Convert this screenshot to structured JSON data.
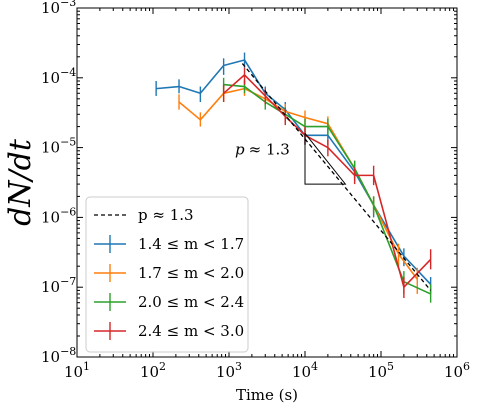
{
  "chart_data": {
    "type": "line",
    "xlabel": "Time (s)",
    "ylabel": "dN/dt",
    "xscale": "log",
    "yscale": "log",
    "xlim": [
      10,
      1000000
    ],
    "ylim": [
      1e-08,
      0.001
    ],
    "x_ticks": [
      {
        "value": 10,
        "base": "10",
        "exp": "1"
      },
      {
        "value": 100,
        "base": "10",
        "exp": "2"
      },
      {
        "value": 1000,
        "base": "10",
        "exp": "3"
      },
      {
        "value": 10000,
        "base": "10",
        "exp": "4"
      },
      {
        "value": 100000,
        "base": "10",
        "exp": "5"
      },
      {
        "value": 1000000,
        "base": "10",
        "exp": "6"
      }
    ],
    "y_ticks": [
      {
        "value": 1e-08,
        "base": "10",
        "exp": "−8"
      },
      {
        "value": 1e-07,
        "base": "10",
        "exp": "−7"
      },
      {
        "value": 1e-06,
        "base": "10",
        "exp": "−6"
      },
      {
        "value": 1e-05,
        "base": "10",
        "exp": "−5"
      },
      {
        "value": 0.0001,
        "base": "10",
        "exp": "−4"
      },
      {
        "value": 0.001,
        "base": "10",
        "exp": "−3"
      }
    ],
    "legend_position": "lower-left",
    "fit_line": {
      "label": "p ≈ 1.3",
      "style": "dashed",
      "color": "#000000",
      "x": [
        1500,
        450000
      ],
      "y": [
        0.00016,
        9e-08
      ]
    },
    "annotation": {
      "prefix": "p",
      "value": "≈ 1.3",
      "triangle_x": [
        10000,
        34000
      ],
      "triangle_y": [
        1.6e-05,
        3e-06
      ]
    },
    "series": [
      {
        "name": "1.4 ≤ m < 1.7",
        "color": "#1f77b4",
        "x": [
          110,
          220,
          420,
          850,
          1600,
          3000,
          5500,
          10000,
          20000,
          45000,
          80000,
          200000,
          450000
        ],
        "y": [
          7e-05,
          7.5e-05,
          6e-05,
          0.00015,
          0.00018,
          6e-05,
          3.5e-05,
          1.5e-05,
          1.5e-05,
          4.5e-06,
          1.5e-06,
          2.8e-07,
          1.1e-07
        ],
        "err_low": [
          5.5e-05,
          6e-05,
          4.5e-05,
          0.00011,
          0.00014,
          4.5e-05,
          2.7e-05,
          1.1e-05,
          1.1e-05,
          3.3e-06,
          1e-06,
          2e-07,
          8e-08
        ],
        "err_high": [
          9e-05,
          9.5e-05,
          7.5e-05,
          0.00019,
          0.00023,
          7.5e-05,
          4.5e-05,
          1.9e-05,
          1.9e-05,
          5.7e-06,
          2e-06,
          3.6e-07,
          1.4e-07
        ]
      },
      {
        "name": "1.7 ≤ m < 2.0",
        "color": "#ff7f0e",
        "x": [
          220,
          420,
          850,
          1600,
          3000,
          5500,
          10000,
          20000,
          45000,
          80000,
          170000,
          300000
        ],
        "y": [
          4.5e-05,
          2.5e-05,
          6e-05,
          7e-05,
          5e-05,
          3.3e-05,
          2.7e-05,
          2.2e-05,
          5e-06,
          1.5e-06,
          3e-07,
          1.3e-07
        ],
        "err_low": [
          3.5e-05,
          2e-05,
          4.5e-05,
          5.5e-05,
          4e-05,
          2.6e-05,
          2.1e-05,
          1.7e-05,
          3.7e-06,
          1.1e-06,
          2e-07,
          8e-08
        ],
        "err_high": [
          5.8e-05,
          3.2e-05,
          7.8e-05,
          9e-05,
          6.3e-05,
          4.2e-05,
          3.4e-05,
          2.8e-05,
          6.5e-06,
          2e-06,
          4.2e-07,
          1.9e-07
        ]
      },
      {
        "name": "2.0 ≤ m < 2.4",
        "color": "#2ca02c",
        "x": [
          850,
          1600,
          3000,
          5500,
          10000,
          20000,
          45000,
          80000,
          200000,
          450000
        ],
        "y": [
          8e-05,
          7.5e-05,
          4.5e-05,
          3e-05,
          2e-05,
          2e-05,
          5e-06,
          1.5e-06,
          1.2e-07,
          8e-08
        ],
        "err_low": [
          6e-05,
          6e-05,
          3.5e-05,
          2.3e-05,
          1.5e-05,
          1.5e-05,
          3.7e-06,
          1.1e-06,
          8e-08,
          6e-08
        ],
        "err_high": [
          0.0001,
          9.5e-05,
          5.7e-05,
          3.8e-05,
          2.6e-05,
          2.6e-05,
          6.5e-06,
          2e-06,
          1.7e-07,
          1.1e-07
        ]
      },
      {
        "name": "2.4 ≤ m < 3.0",
        "color": "#d62728",
        "x": [
          850,
          1600,
          3000,
          5500,
          10000,
          20000,
          45000,
          80000,
          200000,
          450000
        ],
        "y": [
          6e-05,
          0.00011,
          5.5e-05,
          2.8e-05,
          1.5e-05,
          1e-05,
          4e-06,
          4e-06,
          1e-07,
          2.5e-07
        ],
        "err_low": [
          4.5e-05,
          8e-05,
          4.2e-05,
          2.1e-05,
          1.1e-05,
          7.5e-06,
          3e-06,
          2.9e-06,
          7e-08,
          1.8e-07
        ],
        "err_high": [
          8e-05,
          0.00014,
          7e-05,
          3.6e-05,
          2e-05,
          1.3e-05,
          5.2e-06,
          5.5e-06,
          1.4e-07,
          3.5e-07
        ]
      }
    ]
  }
}
